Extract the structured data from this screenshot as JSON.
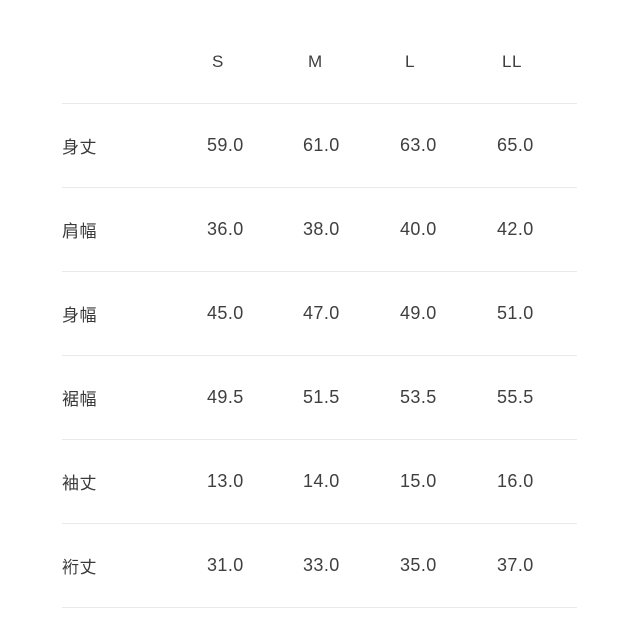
{
  "table": {
    "columns": [
      "S",
      "M",
      "L",
      "LL"
    ],
    "rows": [
      {
        "label": "身丈",
        "values": [
          "59.0",
          "61.0",
          "63.0",
          "65.0"
        ]
      },
      {
        "label": "肩幅",
        "values": [
          "36.0",
          "38.0",
          "40.0",
          "42.0"
        ]
      },
      {
        "label": "身幅",
        "values": [
          "45.0",
          "47.0",
          "49.0",
          "51.0"
        ]
      },
      {
        "label": "裾幅",
        "values": [
          "49.5",
          "51.5",
          "53.5",
          "55.5"
        ]
      },
      {
        "label": "袖丈",
        "values": [
          "13.0",
          "14.0",
          "15.0",
          "16.0"
        ]
      },
      {
        "label": "裄丈",
        "values": [
          "31.0",
          "33.0",
          "35.0",
          "37.0"
        ]
      }
    ]
  },
  "chart_data": {
    "type": "table",
    "title": "",
    "columns": [
      "S",
      "M",
      "L",
      "LL"
    ],
    "row_labels": [
      "身丈",
      "肩幅",
      "身幅",
      "裾幅",
      "袖丈",
      "裄丈"
    ],
    "values": [
      [
        59.0,
        61.0,
        63.0,
        65.0
      ],
      [
        36.0,
        38.0,
        40.0,
        42.0
      ],
      [
        45.0,
        47.0,
        49.0,
        51.0
      ],
      [
        49.5,
        51.5,
        53.5,
        55.5
      ],
      [
        13.0,
        14.0,
        15.0,
        16.0
      ],
      [
        31.0,
        33.0,
        35.0,
        37.0
      ]
    ]
  },
  "colors": {
    "text": "#3d3d3d",
    "divider": "#e9e9e9",
    "background": "#ffffff"
  }
}
